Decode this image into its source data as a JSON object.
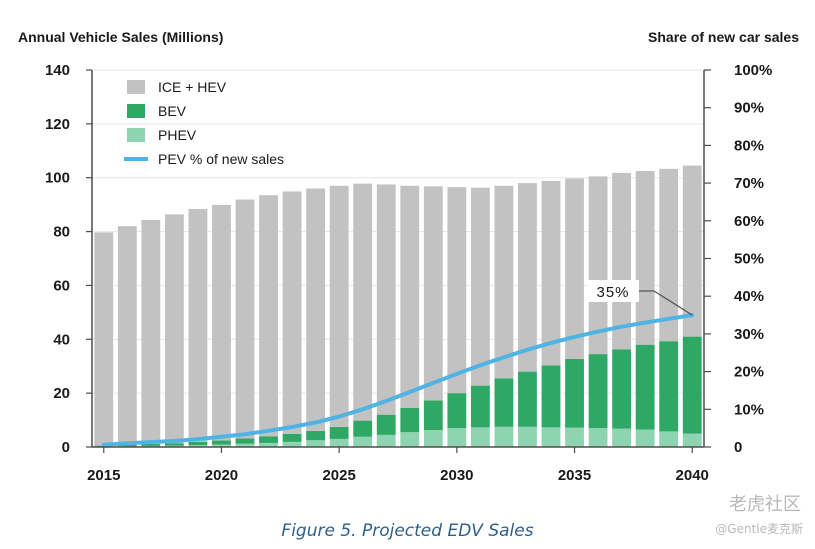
{
  "chart_data": {
    "type": "bar",
    "left_axis_title": "Annual Vehicle Sales (Millions)",
    "right_axis_title": "Share of new car sales",
    "x": [
      2015,
      2016,
      2017,
      2018,
      2019,
      2020,
      2021,
      2022,
      2023,
      2024,
      2025,
      2026,
      2027,
      2028,
      2029,
      2030,
      2031,
      2032,
      2033,
      2034,
      2035,
      2036,
      2037,
      2038,
      2039,
      2040
    ],
    "x_ticks": [
      "2015",
      "2020",
      "2025",
      "2030",
      "2035",
      "2040"
    ],
    "y_left_ticks": [
      "0",
      "20",
      "40",
      "60",
      "80",
      "100",
      "120",
      "140"
    ],
    "y_right_ticks": [
      "0",
      "10%",
      "20%",
      "30%",
      "40%",
      "50%",
      "60%",
      "70%",
      "80%",
      "90%",
      "100%"
    ],
    "ylim_left": [
      0,
      140
    ],
    "ylim_right": [
      0,
      100
    ],
    "stacked": true,
    "series": [
      {
        "name": "ICE + HEV",
        "kind": "bar",
        "color": "#c3c2c2",
        "values": [
          79.2,
          81.2,
          83.2,
          85.0,
          86.5,
          87.5,
          88.7,
          89.5,
          90.0,
          90.0,
          89.5,
          88.0,
          85.5,
          82.5,
          79.5,
          76.5,
          73.5,
          71.5,
          70.0,
          68.5,
          67.0,
          66.0,
          65.5,
          64.5,
          64.0,
          63.5
        ]
      },
      {
        "name": "BEV",
        "kind": "bar",
        "color": "#2fa866",
        "values": [
          0.3,
          0.5,
          0.7,
          0.9,
          1.2,
          1.5,
          2.0,
          2.5,
          3.0,
          3.5,
          4.5,
          6.0,
          7.5,
          9.0,
          11.0,
          13.0,
          15.5,
          18.0,
          20.5,
          23.0,
          25.5,
          27.5,
          29.5,
          31.5,
          33.5,
          36.0
        ]
      },
      {
        "name": "PHEV",
        "kind": "bar",
        "color": "#8fd4b0",
        "values": [
          0.2,
          0.3,
          0.4,
          0.5,
          0.7,
          0.9,
          1.2,
          1.5,
          1.9,
          2.5,
          3.0,
          3.8,
          4.5,
          5.5,
          6.3,
          7.0,
          7.3,
          7.5,
          7.5,
          7.3,
          7.2,
          7.0,
          6.8,
          6.5,
          5.8,
          5.0
        ]
      },
      {
        "name": "PEV % of new sales",
        "kind": "line",
        "axis": "right",
        "color": "#4fb4e3",
        "values": [
          0.6,
          1.0,
          1.3,
          1.6,
          2.1,
          2.7,
          3.4,
          4.3,
          5.3,
          6.5,
          8.1,
          10.0,
          12.2,
          14.6,
          17.0,
          19.4,
          21.7,
          23.8,
          25.8,
          27.6,
          29.2,
          30.6,
          31.9,
          33.0,
          34.0,
          35.0
        ]
      }
    ],
    "annotation": "35%",
    "legend_position": "top-left"
  },
  "caption": "Figure 5. Projected EDV Sales",
  "watermark": "老虎社区",
  "watermark_sub": "@Gentle麦克斯"
}
